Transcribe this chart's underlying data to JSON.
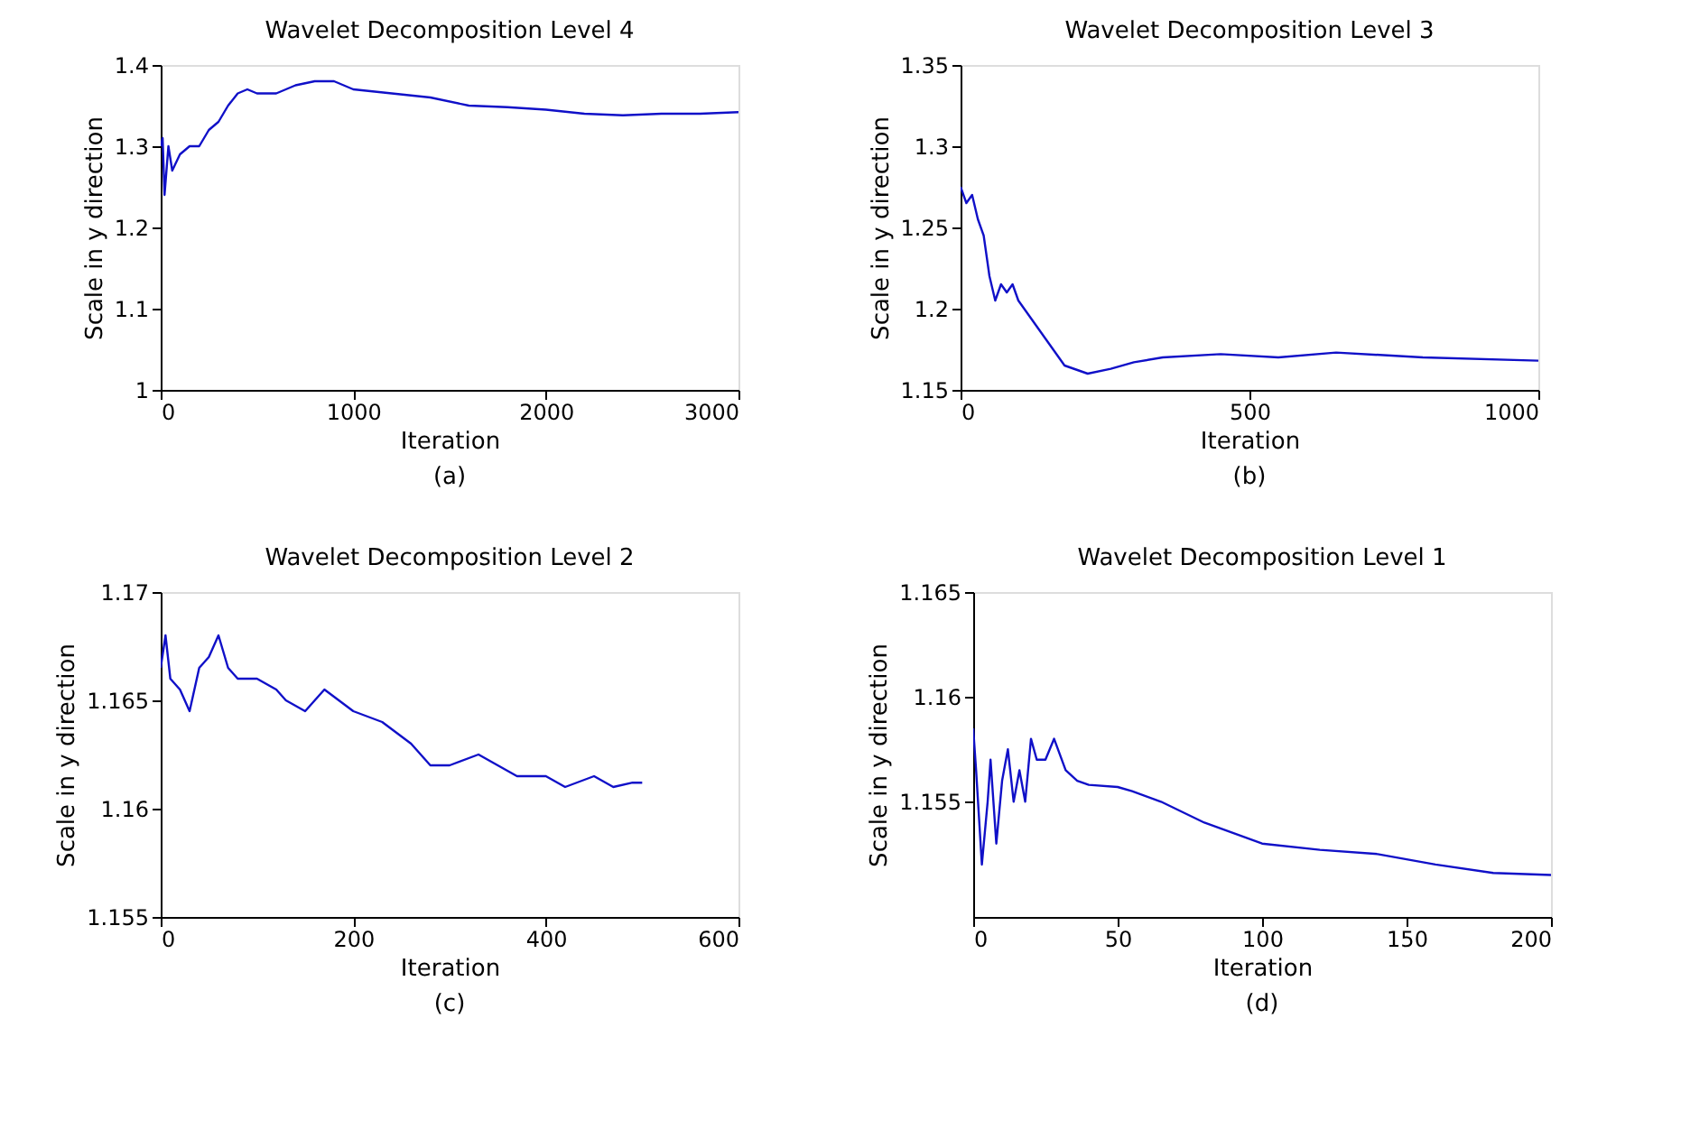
{
  "chart_data": [
    {
      "type": "line",
      "title": "Wavelet Decomposition Level 4",
      "xlabel": "Iteration",
      "ylabel": "Scale in y direction",
      "annotations": [
        "(a)"
      ],
      "xlim": [
        0,
        3000
      ],
      "xticks": [
        0,
        1000,
        2000,
        3000
      ],
      "ylim": [
        1,
        1.4
      ],
      "yticks": [
        1,
        1.1,
        1.2,
        1.3,
        1.4
      ],
      "grid": false,
      "series": [
        {
          "color": "#1010c8",
          "x": [
            0,
            10,
            20,
            40,
            60,
            100,
            150,
            200,
            250,
            300,
            350,
            400,
            450,
            500,
            600,
            700,
            800,
            900,
            1000,
            1200,
            1400,
            1600,
            1800,
            2000,
            2200,
            2400,
            2600,
            2800,
            3000
          ],
          "values": [
            1.3,
            1.31,
            1.24,
            1.3,
            1.27,
            1.29,
            1.3,
            1.3,
            1.32,
            1.33,
            1.35,
            1.365,
            1.37,
            1.365,
            1.365,
            1.375,
            1.38,
            1.38,
            1.37,
            1.365,
            1.36,
            1.35,
            1.348,
            1.345,
            1.34,
            1.338,
            1.34,
            1.34,
            1.342
          ]
        }
      ]
    },
    {
      "type": "line",
      "title": "Wavelet Decomposition Level 3",
      "xlabel": "Iteration",
      "ylabel": "Scale in y direction",
      "annotations": [
        "(b)"
      ],
      "xlim": [
        0,
        1000
      ],
      "xticks": [
        0,
        500,
        1000
      ],
      "ylim": [
        1.15,
        1.35
      ],
      "yticks": [
        1.15,
        1.2,
        1.25,
        1.3,
        1.35
      ],
      "grid": false,
      "series": [
        {
          "color": "#1010c8",
          "x": [
            0,
            10,
            20,
            30,
            40,
            50,
            60,
            70,
            80,
            90,
            100,
            120,
            150,
            180,
            220,
            260,
            300,
            350,
            450,
            550,
            650,
            800,
            1000
          ],
          "values": [
            1.275,
            1.265,
            1.27,
            1.255,
            1.245,
            1.22,
            1.205,
            1.215,
            1.21,
            1.215,
            1.205,
            1.195,
            1.18,
            1.165,
            1.16,
            1.163,
            1.167,
            1.17,
            1.172,
            1.17,
            1.173,
            1.17,
            1.168
          ]
        }
      ]
    },
    {
      "type": "line",
      "title": "Wavelet Decomposition Level 2",
      "xlabel": "Iteration",
      "ylabel": "Scale in y direction",
      "annotations": [
        "(c)"
      ],
      "xlim": [
        0,
        600
      ],
      "xticks": [
        0,
        200,
        400,
        600
      ],
      "ylim": [
        1.155,
        1.17
      ],
      "yticks": [
        1.155,
        1.16,
        1.165,
        1.17
      ],
      "grid": false,
      "series": [
        {
          "color": "#1010c8",
          "x": [
            0,
            5,
            10,
            20,
            30,
            40,
            50,
            60,
            70,
            80,
            100,
            120,
            130,
            150,
            170,
            200,
            230,
            260,
            280,
            300,
            330,
            350,
            370,
            400,
            420,
            450,
            470,
            490,
            500
          ],
          "values": [
            1.1665,
            1.168,
            1.166,
            1.1655,
            1.1645,
            1.1665,
            1.167,
            1.168,
            1.1665,
            1.166,
            1.166,
            1.1655,
            1.165,
            1.1645,
            1.1655,
            1.1645,
            1.164,
            1.163,
            1.162,
            1.162,
            1.1625,
            1.162,
            1.1615,
            1.1615,
            1.161,
            1.1615,
            1.161,
            1.1612,
            1.1612
          ]
        }
      ]
    },
    {
      "type": "line",
      "title": "Wavelet Decomposition Level 1",
      "xlabel": "Iteration",
      "ylabel": "Scale in y direction",
      "annotations": [
        "(d)"
      ],
      "xlim": [
        0,
        200
      ],
      "xticks": [
        0,
        50,
        100,
        150,
        200
      ],
      "ylim": [
        1.1495,
        1.165
      ],
      "yticks": [
        1.155,
        1.16,
        1.165
      ],
      "grid": false,
      "series": [
        {
          "color": "#1010c8",
          "x": [
            0,
            1,
            3,
            5,
            6,
            8,
            10,
            12,
            14,
            16,
            18,
            20,
            22,
            25,
            28,
            32,
            36,
            40,
            50,
            55,
            65,
            80,
            100,
            120,
            140,
            160,
            180,
            200
          ],
          "values": [
            1.1585,
            1.1565,
            1.152,
            1.155,
            1.157,
            1.153,
            1.156,
            1.1575,
            1.155,
            1.1565,
            1.155,
            1.158,
            1.157,
            1.157,
            1.158,
            1.1565,
            1.156,
            1.1558,
            1.1557,
            1.1555,
            1.155,
            1.154,
            1.153,
            1.1527,
            1.1525,
            1.152,
            1.1516,
            1.1515
          ]
        }
      ]
    }
  ]
}
